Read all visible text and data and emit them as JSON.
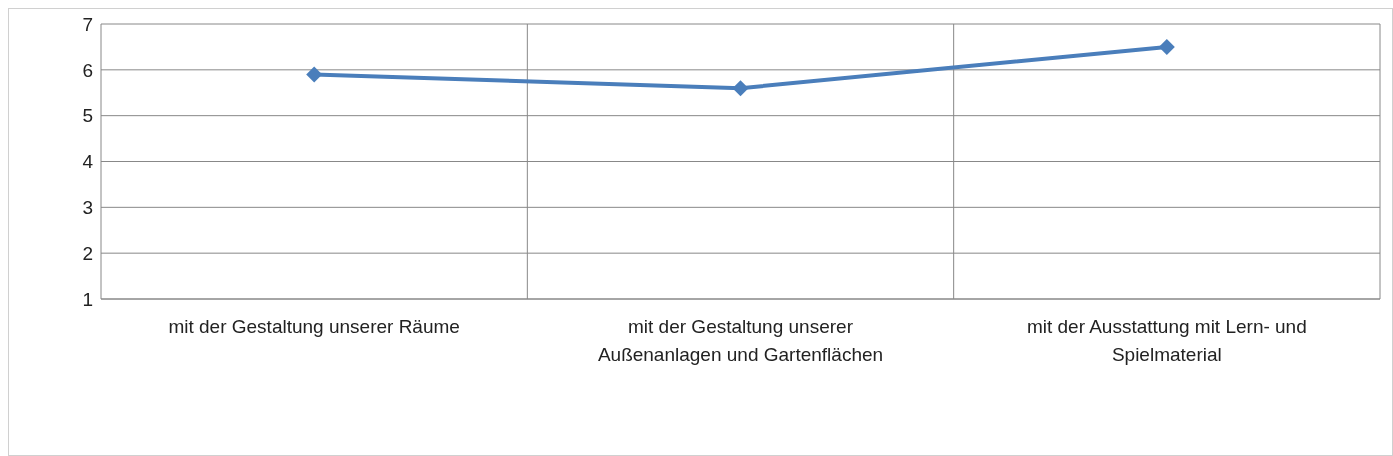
{
  "chart_data": {
    "type": "line",
    "categories": [
      "mit der Gestaltung unserer Räume",
      "mit der Gestaltung unserer Außenanlagen und Gartenflächen",
      "mit der Ausstattung mit Lern- und Spielmaterial"
    ],
    "series": [
      {
        "color": "#4a7ebb",
        "values": [
          5.9,
          5.6,
          6.5
        ]
      }
    ],
    "ylim": [
      1,
      7
    ],
    "yticks": [
      1,
      2,
      3,
      4,
      5,
      6,
      7
    ],
    "grid": true,
    "legend": false,
    "marker": "diamond",
    "line_style": "solid"
  }
}
